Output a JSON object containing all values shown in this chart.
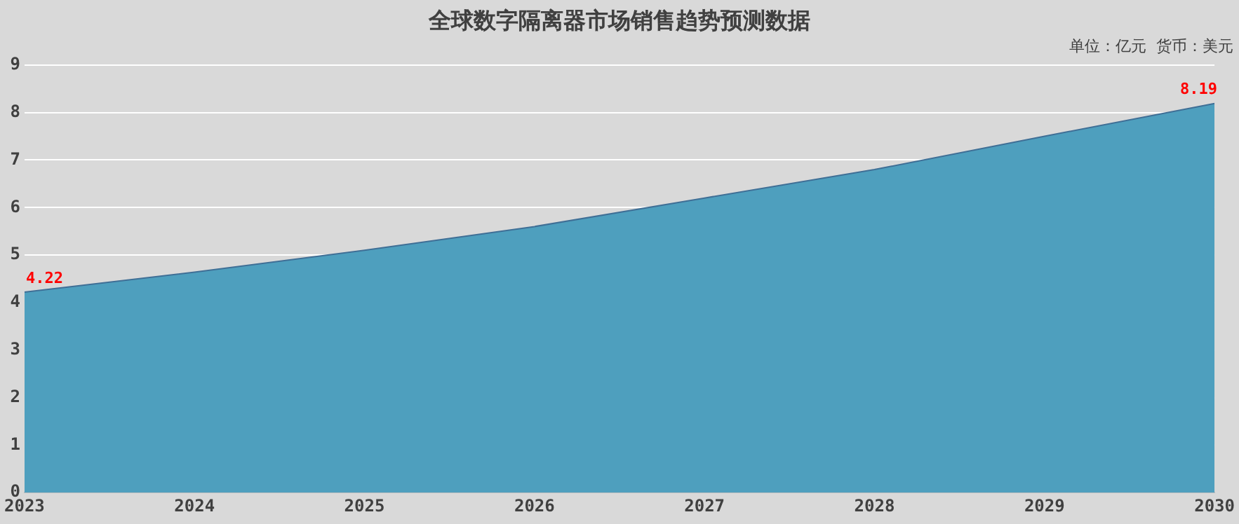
{
  "chart_data": {
    "type": "area",
    "title": "全球数字隔离器市场销售趋势预测数据",
    "subtitle": "单位：亿元  货币：美元",
    "x": [
      2023,
      2024,
      2025,
      2026,
      2027,
      2028,
      2029,
      2030
    ],
    "series": [
      {
        "color": "#4e9fbe",
        "values": [
          4.22,
          4.64,
          5.1,
          5.6,
          6.2,
          6.8,
          7.5,
          8.19
        ],
        "value_labels": [
          "4.22",
          null,
          null,
          null,
          null,
          null,
          null,
          "8.19"
        ]
      }
    ],
    "xlim": [
      2023,
      2030
    ],
    "xticks": [
      2023,
      2024,
      2025,
      2026,
      2027,
      2028,
      2029,
      2030
    ],
    "ylim": [
      0,
      9
    ],
    "yticks": [
      0,
      1,
      2,
      3,
      4,
      5,
      6,
      7,
      8,
      9
    ],
    "grid": "y",
    "legend": false
  }
}
